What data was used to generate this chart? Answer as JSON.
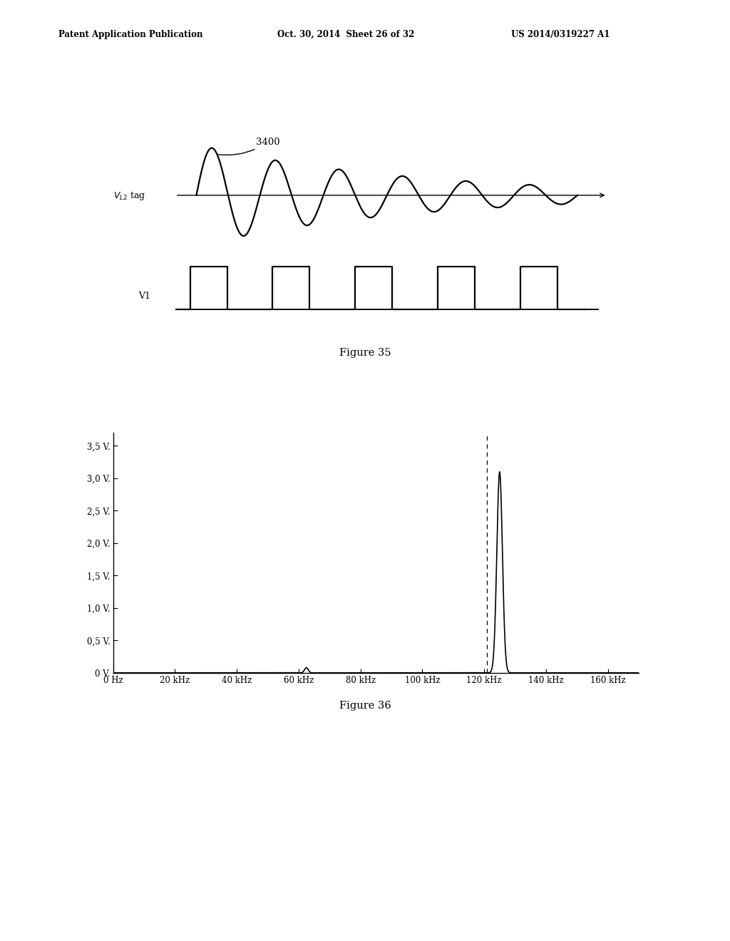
{
  "header_left": "Patent Application Publication",
  "header_center": "Oct. 30, 2014  Sheet 26 of 32",
  "header_right": "US 2014/0319227 A1",
  "fig35_label": "Figure 35",
  "fig36_label": "Figure 36",
  "yticks_labels": [
    "0 V.",
    "0,5 V.",
    "1,0 V.",
    "1,5 V.",
    "2,0 V.",
    "2,5 V.",
    "3,0 V.",
    "3,5 V."
  ],
  "yticks_vals": [
    0,
    0.5,
    1.0,
    1.5,
    2.0,
    2.5,
    3.0,
    3.5
  ],
  "xticks_labels": [
    "0 Hz",
    "20 kHz",
    "40 kHz",
    "60 kHz",
    "80 kHz",
    "100 kHz",
    "120 kHz",
    "140 kHz",
    "160 kHz"
  ],
  "xticks_vals": [
    0,
    20000,
    40000,
    60000,
    80000,
    100000,
    120000,
    140000,
    160000
  ],
  "peak_freq": 125000,
  "peak_val": 3.1,
  "small_peak_freq": 62500,
  "small_peak_val": 0.08,
  "dashed_line_freq": 121000,
  "background_color": "#ffffff",
  "line_color": "#000000"
}
